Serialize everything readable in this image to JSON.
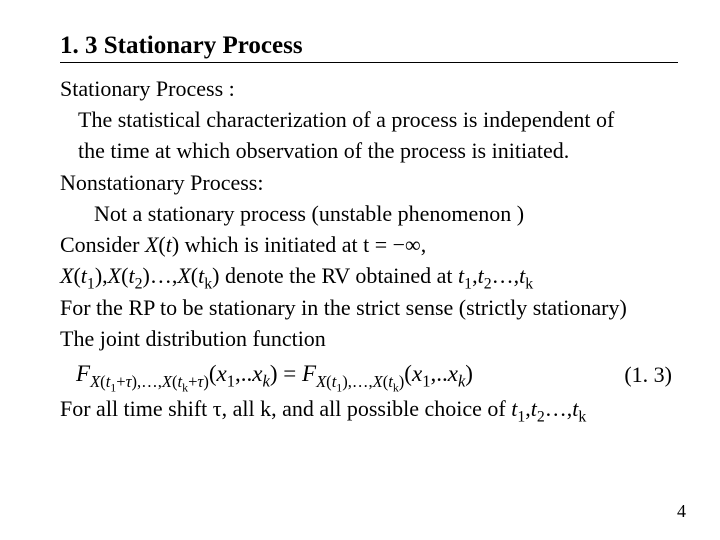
{
  "title": "1. 3 Stationary Process",
  "lines": {
    "l1": "Stationary Process :",
    "l2": "The statistical characterization of a process is independent of",
    "l3": "the time at which observation of the process is initiated.",
    "l4": "Nonstationary Process:",
    "l5": "Not a stationary process (unstable phenomenon )",
    "l6a": "Consider ",
    "l6b": "X",
    "l6c": "(",
    "l6d": "t",
    "l6e": ") which is initiated at t = −∞,",
    "l7": {
      "X": "X",
      "op": "(",
      "t": "t",
      "cp": ")",
      "s1": "1",
      "s2": "2",
      "sk": "k",
      "mid": " denote the RV obtained at ",
      "t1": "t",
      "comma": ",",
      "dots": "…,"
    },
    "l8": "For the RP to be stationary in the strict sense (strictly stationary)",
    "l9": "The joint distribution function",
    "l10a": "For all time shift τ, all k, and all possible choice of ",
    "l10_t": "t"
  },
  "equation": {
    "F": "F",
    "X": "X",
    "t": "t",
    "tau": "τ",
    "x": "x",
    "k": "k",
    "num": "(1. 3)"
  },
  "pagenum": "4",
  "colors": {
    "text": "#000000",
    "bg": "#ffffff"
  }
}
